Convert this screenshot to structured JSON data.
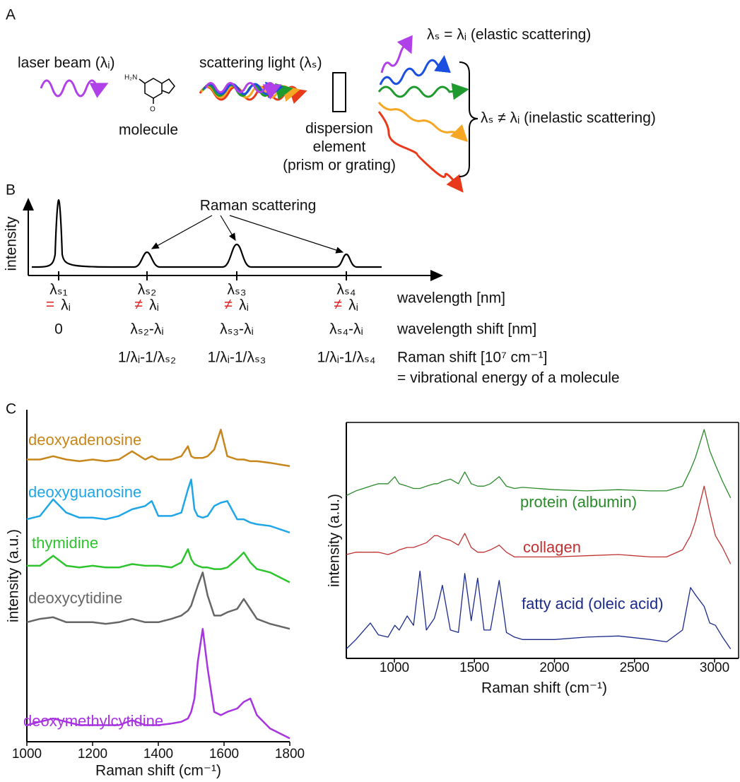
{
  "panel_a": {
    "letter": "A",
    "laser": "laser beam (λᵢ)",
    "scattering": "scattering light (λₛ)",
    "molecule": "molecule",
    "amine": "H₂N",
    "oxygen": "O",
    "dispersion": [
      "dispersion",
      "element",
      "(prism or grating)"
    ],
    "elastic": "λₛ = λᵢ (elastic scattering)",
    "inelastic": "λₛ ≠ λᵢ (inelastic scattering)"
  },
  "panel_b": {
    "letter": "B",
    "raman_label": "Raman scattering",
    "y_label": "intensity",
    "peaks": [
      "λₛ₁",
      "λₛ₂",
      "λₛ₃",
      "λₛ₄"
    ],
    "relations": [
      "=",
      "≠",
      "≠",
      "≠"
    ],
    "incident": [
      "λᵢ",
      "λᵢ",
      "λᵢ",
      "λᵢ"
    ],
    "shifts": [
      "0",
      "λₛ₂-λᵢ",
      "λₛ₃-λᵢ",
      "λₛ₄-λᵢ"
    ],
    "raman_shifts": [
      null,
      "1/λᵢ-1/λₛ₂",
      "1/λᵢ-1/λₛ₃",
      "1/λᵢ-1/λₛ₄"
    ],
    "row_labels": [
      "wavelength [nm]",
      "wavelength shift [nm]",
      "Raman shift [10⁷ cm⁻¹]",
      "= vibrational energy of a molecule"
    ]
  },
  "panel_c": {
    "letter": "C"
  },
  "chart_data": [
    {
      "type": "line",
      "x_label": "Raman shift (cm⁻¹)",
      "y_label": "intensity (a.u.)",
      "xlim": [
        1000,
        1800
      ],
      "ylim": [
        0,
        100
      ],
      "xticks": [
        1000,
        1200,
        1400,
        1600,
        1800
      ],
      "box": false,
      "x": [
        1000,
        1040,
        1080,
        1120,
        1160,
        1200,
        1240,
        1280,
        1320,
        1360,
        1380,
        1400,
        1440,
        1470,
        1490,
        1500,
        1510,
        1520,
        1535,
        1550,
        1570,
        1590,
        1610,
        1640,
        1660,
        1680,
        1700,
        1740,
        1800
      ],
      "series": [
        {
          "name": "deoxyadenosine",
          "color": "#c8861a",
          "values": [
            85,
            85,
            86,
            85,
            84.5,
            85,
            84.5,
            85,
            87.5,
            85,
            86,
            85,
            85,
            86,
            89,
            86,
            85.5,
            85.5,
            85.5,
            86,
            88,
            94,
            86,
            85,
            85,
            84.5,
            84.5,
            84,
            83
          ]
        },
        {
          "name": "deoxyguanosine",
          "color": "#1ea6e8",
          "values": [
            67,
            68,
            73,
            69,
            67.5,
            67.5,
            67,
            68,
            70,
            71,
            72.5,
            68,
            68,
            69,
            76,
            79,
            70,
            68,
            67.5,
            68,
            71,
            72,
            72.5,
            67,
            67,
            66,
            65.5,
            65,
            63
          ]
        },
        {
          "name": "thymidine",
          "color": "#2ec42e",
          "values": [
            53,
            53,
            56,
            53,
            52.5,
            53,
            52.5,
            52.5,
            53.5,
            53,
            53,
            53,
            52.5,
            54,
            58,
            55,
            53.5,
            53,
            52.5,
            52.5,
            52,
            52,
            52.5,
            55,
            57,
            54,
            52,
            51,
            48
          ]
        },
        {
          "name": "deoxycytidine",
          "color": "#666666",
          "values": [
            36,
            37,
            37.5,
            36,
            36,
            36,
            35.5,
            36,
            37,
            36,
            36,
            36,
            37,
            38,
            39.5,
            41,
            44,
            47,
            51,
            44,
            38,
            38,
            39,
            40,
            43,
            40,
            37,
            35.5,
            34
          ]
        },
        {
          "name": "deoxymethylcytidine",
          "color": "#a833e0",
          "values": [
            5,
            6,
            7,
            6,
            5,
            5,
            5,
            5,
            6.5,
            5,
            5,
            5,
            5.5,
            6,
            7,
            9,
            13,
            24,
            34,
            22,
            9,
            8,
            9,
            10,
            12,
            13,
            8,
            4,
            1
          ]
        }
      ]
    },
    {
      "type": "line",
      "x_label": "Raman shift (cm⁻¹)",
      "y_label": "intensity (a.u.)",
      "xlim": [
        700,
        3150
      ],
      "ylim": [
        0,
        100
      ],
      "xticks": [
        1000,
        1500,
        2000,
        2500,
        3000
      ],
      "box": true,
      "x": [
        700,
        760,
        850,
        900,
        960,
        1003,
        1030,
        1080,
        1120,
        1160,
        1200,
        1250,
        1270,
        1300,
        1350,
        1400,
        1440,
        1480,
        1520,
        1560,
        1600,
        1655,
        1700,
        1750,
        1800,
        2000,
        2200,
        2400,
        2600,
        2700,
        2800,
        2850,
        2880,
        2935,
        2970,
        3005,
        3050,
        3100
      ],
      "series": [
        {
          "name": "protein (albumin)",
          "color": "#2a8a2a",
          "values": [
            69,
            71,
            73,
            74,
            74,
            77,
            74,
            73,
            72,
            72,
            73,
            74,
            74,
            75,
            76,
            74,
            79,
            74,
            73,
            73,
            74,
            77,
            73,
            72,
            72.5,
            71.5,
            71,
            71.5,
            71,
            71,
            73,
            80,
            85,
            97,
            88,
            82,
            75,
            68
          ]
        },
        {
          "name": "collagen",
          "color": "#c03030",
          "values": [
            44,
            45,
            45,
            45,
            44,
            45,
            46,
            47,
            47,
            48,
            49,
            52,
            52,
            51,
            50,
            48,
            53,
            47,
            45,
            45,
            46,
            48,
            45,
            43,
            43,
            43,
            43.5,
            44,
            43,
            43,
            46,
            52,
            58,
            73,
            62,
            52,
            47,
            40
          ]
        },
        {
          "name": "fatty acid (oleic acid)",
          "color": "#1a2a8a",
          "values": [
            4,
            8,
            15,
            10,
            9,
            14,
            12,
            18,
            14,
            37,
            12,
            17,
            22,
            31,
            12,
            11,
            36,
            16,
            34,
            12,
            12,
            33,
            11,
            9,
            8,
            8,
            9,
            9.5,
            8,
            7,
            12,
            30,
            27,
            22,
            15,
            14,
            9,
            4
          ]
        }
      ]
    }
  ]
}
